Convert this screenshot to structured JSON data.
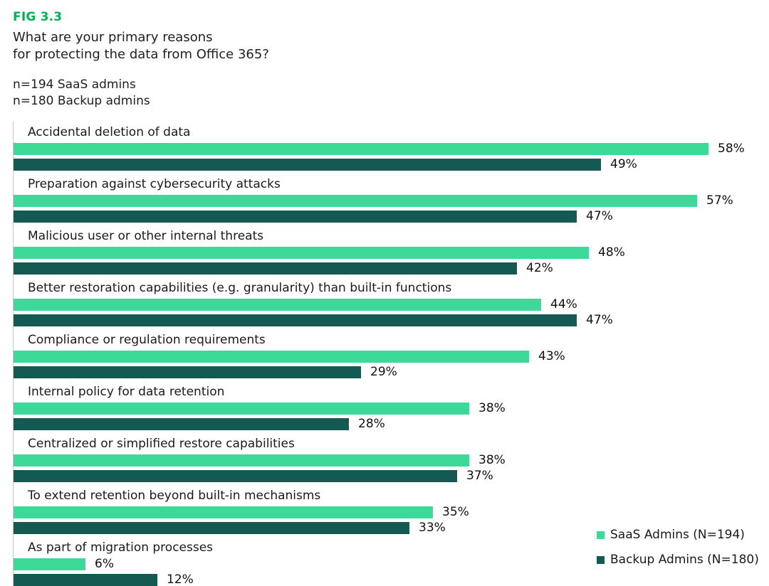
{
  "header": {
    "fig_label": "FIG 3.3",
    "title_line1": "What are your primary reasons",
    "title_line2": "for protecting the data from Office 365?",
    "subtitle_line1": "n=194 SaaS admins",
    "subtitle_line2": "n=180 Backup admins"
  },
  "colors": {
    "fig_green": "#00b050",
    "saas": "#3cd998",
    "backup": "#155a52"
  },
  "chart_data": {
    "type": "bar",
    "orientation": "horizontal",
    "title": "What are your primary reasons for protecting the data from Office 365?",
    "xlabel": "",
    "ylabel": "",
    "xlim": [
      0,
      60
    ],
    "grid": false,
    "legend_position": "bottom-right",
    "value_label_suffix": "%",
    "categories": [
      "Accidental deletion of data",
      "Preparation against cybersecurity attacks",
      "Malicious user or other internal threats",
      "Better restoration capabilities (e.g. granularity) than built-in functions",
      "Compliance or regulation requirements",
      "Internal policy for data retention",
      "Centralized or simplified restore capabilities",
      "To extend retention beyond built-in mechanisms",
      "As part of migration processes"
    ],
    "series": [
      {
        "name": "SaaS Admins (N=194)",
        "values": [
          58,
          57,
          48,
          44,
          43,
          38,
          38,
          35,
          6
        ]
      },
      {
        "name": "Backup Admins (N=180)",
        "values": [
          49,
          47,
          42,
          47,
          29,
          28,
          37,
          33,
          12
        ]
      }
    ]
  },
  "legend": {
    "saas_label": "SaaS Admins (N=194)",
    "backup_label": "Backup Admins (N=180)"
  }
}
